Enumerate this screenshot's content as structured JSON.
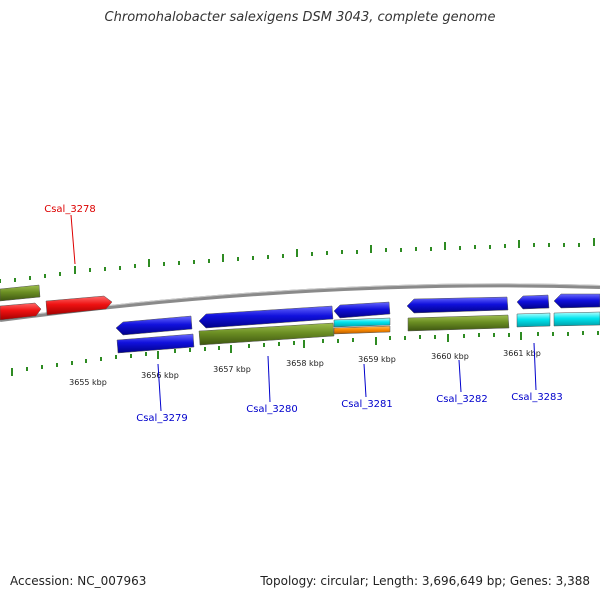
{
  "title": "Chromohalobacter salexigens DSM 3043, complete genome",
  "footer": {
    "accession": "Accession: NC_007963",
    "summary": "Topology: circular; Length: 3,696,649 bp; Genes: 3,388"
  },
  "colors": {
    "backbone": "#8a8a8a",
    "tick": "#2e8b22",
    "label_red": "#dd0000",
    "label_blue": "#0000cc",
    "gene_red": "#ee1111",
    "gene_blue": "#1111dd",
    "gene_olive": "#6b8e23",
    "gene_cyan": "#00e5ee",
    "gene_orange": "#ff8c00"
  },
  "scale_labels": [
    "3655 kbp",
    "3656 kbp",
    "3657 kbp",
    "3658 kbp",
    "3659 kbp",
    "3660 kbp",
    "3661 kbp"
  ],
  "locus_labels": [
    {
      "text": "Csal_3278",
      "color": "red"
    },
    {
      "text": "Csal_3279",
      "color": "blue"
    },
    {
      "text": "Csal_3280",
      "color": "blue"
    },
    {
      "text": "Csal_3281",
      "color": "blue"
    },
    {
      "text": "Csal_3282",
      "color": "blue"
    },
    {
      "text": "Csal_3283",
      "color": "blue"
    }
  ]
}
